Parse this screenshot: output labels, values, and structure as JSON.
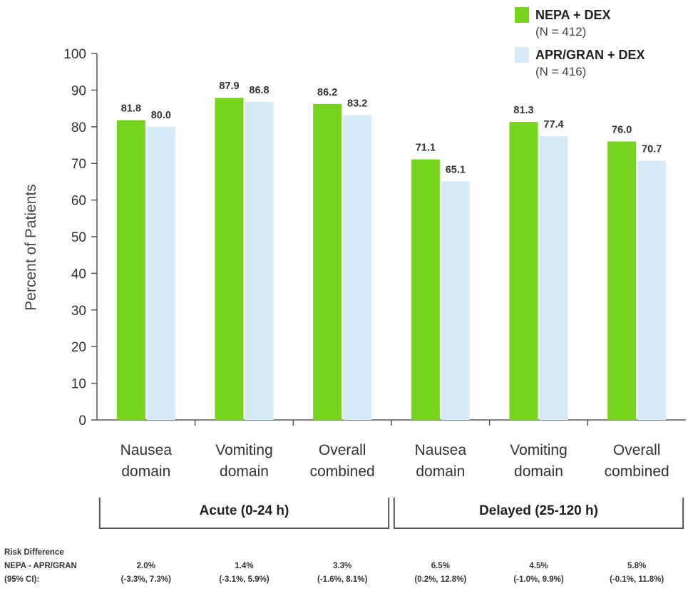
{
  "chart_data": {
    "type": "bar",
    "ylabel": "Percent of Patients",
    "ylim": [
      0,
      100
    ],
    "yticks": [
      0,
      10,
      20,
      30,
      40,
      50,
      60,
      70,
      80,
      90,
      100
    ],
    "categories": [
      [
        "Nausea",
        "domain"
      ],
      [
        "Vomiting",
        "domain"
      ],
      [
        "Overall",
        "combined"
      ],
      [
        "Nausea",
        "domain"
      ],
      [
        "Vomiting",
        "domain"
      ],
      [
        "Overall",
        "combined"
      ]
    ],
    "groups": [
      {
        "label": "Acute (0-24 h)",
        "categories": [
          0,
          1,
          2
        ]
      },
      {
        "label": "Delayed (25-120 h)",
        "categories": [
          3,
          4,
          5
        ]
      }
    ],
    "series": [
      {
        "name": "NEPA + DEX",
        "n_label": "(N = 412)",
        "color": "#77d41e",
        "values": [
          81.8,
          87.9,
          86.2,
          71.1,
          81.3,
          76.0
        ],
        "labels": [
          "81.8",
          "87.9",
          "86.2",
          "71.1",
          "81.3",
          "76.0"
        ]
      },
      {
        "name": "APR/GRAN + DEX",
        "n_label": "(N = 416)",
        "color": "#d6eaf7",
        "values": [
          80.0,
          86.8,
          83.2,
          65.1,
          77.4,
          70.7
        ],
        "labels": [
          "80.0",
          "86.8",
          "83.2",
          "65.1",
          "77.4",
          "70.7"
        ]
      }
    ],
    "legend_position": "top-right",
    "grid": false,
    "risk_difference": {
      "header": [
        "Risk Difference",
        "NEPA - APR/GRAN",
        "(95% CI):"
      ],
      "values": [
        [
          "2.0%",
          "(-3.3%, 7.3%)"
        ],
        [
          "1.4%",
          "(-3.1%, 5.9%)"
        ],
        [
          "3.3%",
          "(-1.6%, 8.1%)"
        ],
        [
          "6.5%",
          "(0.2%, 12.8%)"
        ],
        [
          "4.5%",
          "(-1.0%, 9.9%)"
        ],
        [
          "5.8%",
          "(-0.1%, 11.8%)"
        ]
      ]
    }
  }
}
